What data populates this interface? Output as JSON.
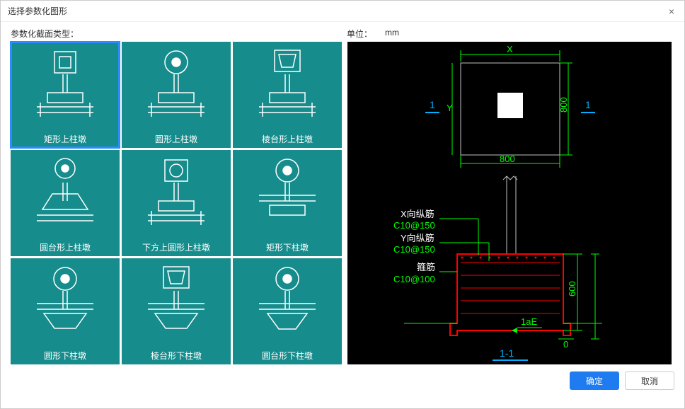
{
  "dialog": {
    "title": "选择参数化图形",
    "section_label": "参数化截面类型：",
    "unit_label": "单位：",
    "unit_value": "mm",
    "ok_label": "确定",
    "cancel_label": "取消",
    "close_icon": "×"
  },
  "thumbs": [
    {
      "label": "矩形上柱墩",
      "top_shape": "rect",
      "bottom_shape": "slab",
      "selected": true
    },
    {
      "label": "圆形上柱墩",
      "top_shape": "circle",
      "bottom_shape": "slab",
      "selected": false
    },
    {
      "label": "棱台形上柱墩",
      "top_shape": "frust_rect",
      "bottom_shape": "slab",
      "selected": false
    },
    {
      "label": "圆台形上柱墩",
      "top_shape": "circle_cone",
      "bottom_shape": "cone_slab",
      "selected": false
    },
    {
      "label": "下方上圆形上柱墩",
      "top_shape": "rect_circle",
      "bottom_shape": "slab",
      "selected": false
    },
    {
      "label": "矩形下柱墩",
      "top_shape": "circle",
      "bottom_shape": "slab_down",
      "selected": false
    },
    {
      "label": "圆形下柱墩",
      "top_shape": "circle",
      "bottom_shape": "cone_down",
      "selected": false
    },
    {
      "label": "棱台形下柱墩",
      "top_shape": "frust_rect",
      "bottom_shape": "cone_down",
      "selected": false
    },
    {
      "label": "圆台形下柱墩",
      "top_shape": "circle",
      "bottom_shape": "cone_down2",
      "selected": false
    }
  ],
  "preview": {
    "plan": {
      "width_label": "800",
      "height_label": "800",
      "x_axis_label": "X",
      "y_axis_label": "Y",
      "section_mark": "1",
      "outer_color": "#c0c0c0",
      "inner_color": "#ffffff",
      "dim_color": "#00ff00",
      "mark_color": "#00b0ff"
    },
    "elevation": {
      "labels": {
        "x_rebar_title": "X向纵筋",
        "x_rebar_spec": "C10@150",
        "y_rebar_title": "Y向纵筋",
        "y_rebar_spec": "C10@150",
        "stirrup_title": "箍筋",
        "stirrup_spec": "C10@100",
        "height": "600",
        "bottom_dim": "0",
        "anchor": "1aE",
        "section_label": "1-1"
      },
      "outline_color": "#ff0000",
      "rebar_color": "#ff0000",
      "text_color": "#00ff00",
      "white_color": "#ffffff",
      "mark_color": "#00b0ff"
    },
    "background": "#000000"
  }
}
